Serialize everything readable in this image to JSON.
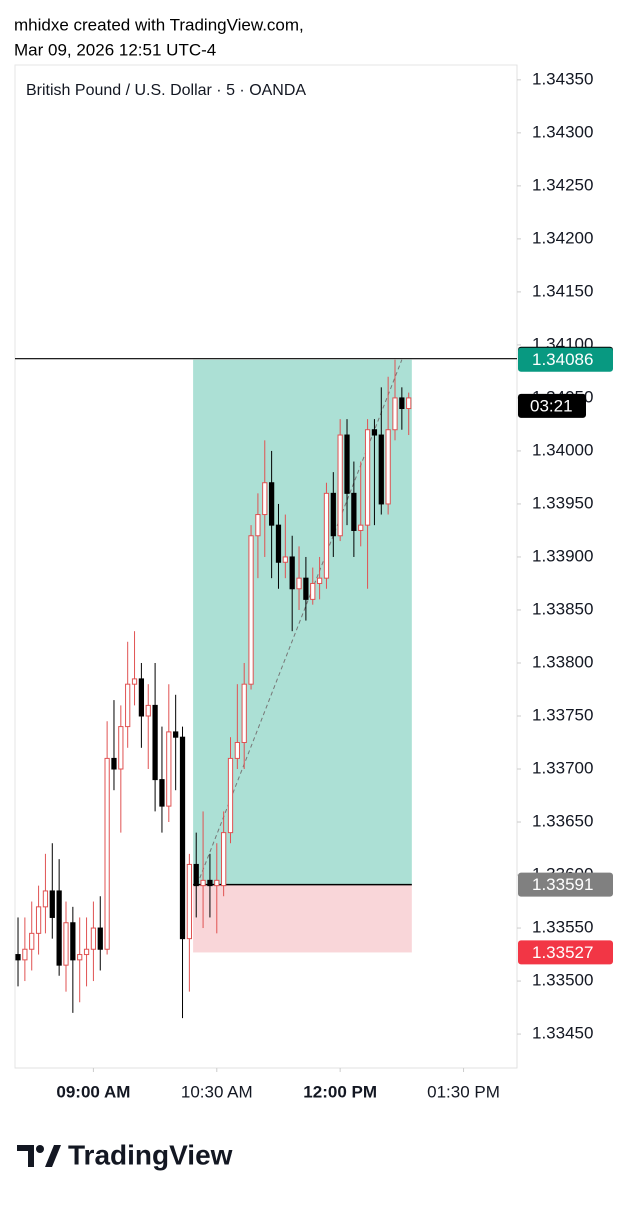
{
  "header": {
    "line1": "mhidxe created with TradingView.com,",
    "line2": "Mar 09, 2026 12:51 UTC-4"
  },
  "chart_data": {
    "type": "candlestick",
    "title": "British Pound / U.S. Dollar · 5 · OANDA",
    "open": [
      1.33525,
      1.3352,
      1.3353,
      1.33545,
      1.3357,
      1.33585,
      1.33585,
      1.33515,
      1.33555,
      1.3352,
      1.33525,
      1.3353,
      1.3355,
      1.3353,
      1.3371,
      1.337,
      1.3374,
      1.3378,
      1.33785,
      1.3375,
      1.3376,
      1.3369,
      1.33665,
      1.33735,
      1.3373,
      1.3354,
      1.3361,
      1.3359,
      1.33595,
      1.3359,
      1.3359,
      1.3364,
      1.3371,
      1.33725,
      1.3378,
      1.3392,
      1.3394,
      1.3397,
      1.3393,
      1.33895,
      1.339,
      1.3387,
      1.3388,
      1.3386,
      1.33875,
      1.3388,
      1.3396,
      1.3392,
      1.34015,
      1.3396,
      1.33925,
      1.3393,
      1.3402,
      1.34015,
      1.3395,
      1.3402,
      1.3405,
      1.3404
    ],
    "high": [
      1.3356,
      1.3356,
      1.33575,
      1.3359,
      1.3362,
      1.3363,
      1.33615,
      1.33575,
      1.3357,
      1.3356,
      1.3356,
      1.33575,
      1.3358,
      1.33745,
      1.33765,
      1.3376,
      1.3382,
      1.3383,
      1.338,
      1.3378,
      1.338,
      1.3374,
      1.3378,
      1.3377,
      1.3374,
      1.3362,
      1.3364,
      1.3366,
      1.3362,
      1.3363,
      1.3366,
      1.3373,
      1.3378,
      1.338,
      1.3393,
      1.3396,
      1.3401,
      1.34,
      1.3395,
      1.3394,
      1.3392,
      1.3391,
      1.339,
      1.3389,
      1.339,
      1.3397,
      1.3398,
      1.3403,
      1.3403,
      1.3399,
      1.3399,
      1.3403,
      1.3403,
      1.3406,
      1.3407,
      1.34086,
      1.3406,
      1.34055
    ],
    "low": [
      1.33495,
      1.335,
      1.3351,
      1.33525,
      1.33545,
      1.3354,
      1.33505,
      1.3349,
      1.3347,
      1.3348,
      1.33495,
      1.335,
      1.3351,
      1.33525,
      1.3368,
      1.3364,
      1.3372,
      1.3376,
      1.3372,
      1.337,
      1.3366,
      1.3364,
      1.3365,
      1.3368,
      1.33465,
      1.3349,
      1.3356,
      1.3355,
      1.3356,
      1.33545,
      1.3358,
      1.3363,
      1.337,
      1.337,
      1.33775,
      1.3388,
      1.339,
      1.3388,
      1.3387,
      1.3388,
      1.3383,
      1.3385,
      1.3384,
      1.33855,
      1.3386,
      1.3387,
      1.339,
      1.33915,
      1.3393,
      1.339,
      1.3391,
      1.3387,
      1.3393,
      1.3394,
      1.3394,
      1.3401,
      1.3402,
      1.34015
    ],
    "close": [
      1.3352,
      1.3353,
      1.33545,
      1.3357,
      1.33585,
      1.3356,
      1.33515,
      1.33555,
      1.3352,
      1.33525,
      1.3353,
      1.3355,
      1.3353,
      1.3371,
      1.337,
      1.3374,
      1.3378,
      1.33785,
      1.3375,
      1.3376,
      1.3369,
      1.33665,
      1.33735,
      1.3373,
      1.3354,
      1.3361,
      1.3359,
      1.33595,
      1.3359,
      1.33595,
      1.3364,
      1.3371,
      1.33725,
      1.3378,
      1.3392,
      1.3394,
      1.3397,
      1.3393,
      1.33895,
      1.339,
      1.3387,
      1.3388,
      1.3386,
      1.33875,
      1.3388,
      1.3396,
      1.3392,
      1.34015,
      1.3396,
      1.33925,
      1.3393,
      1.3402,
      1.34015,
      1.3395,
      1.3402,
      1.3405,
      1.3404,
      1.3405
    ],
    "up_color": "#ffffff",
    "up_border": "#e05252",
    "down_color": "#000000",
    "xlim": [
      -0.44,
      72.8
    ],
    "xticks": [
      {
        "value": 11,
        "label": "09:00 AM"
      },
      {
        "value": 29,
        "label": "10:30 AM"
      },
      {
        "value": 47,
        "label": "12:00 PM"
      },
      {
        "value": 65,
        "label": "01:30 PM"
      }
    ],
    "ylim": [
      1.33418,
      1.34364
    ],
    "yticks": [
      {
        "value": 1.3435,
        "label": "1.34350"
      },
      {
        "value": 1.343,
        "label": "1.34300"
      },
      {
        "value": 1.3425,
        "label": "1.34250"
      },
      {
        "value": 1.342,
        "label": "1.34200"
      },
      {
        "value": 1.3415,
        "label": "1.34150"
      },
      {
        "value": 1.341,
        "label": "1.34100"
      },
      {
        "value": 1.3405,
        "label": "1.34050"
      },
      {
        "value": 1.34,
        "label": "1.34000"
      },
      {
        "value": 1.3395,
        "label": "1.33950"
      },
      {
        "value": 1.339,
        "label": "1.33900"
      },
      {
        "value": 1.3385,
        "label": "1.33850"
      },
      {
        "value": 1.338,
        "label": "1.33800"
      },
      {
        "value": 1.3375,
        "label": "1.33750"
      },
      {
        "value": 1.337,
        "label": "1.33700"
      },
      {
        "value": 1.3365,
        "label": "1.33650"
      },
      {
        "value": 1.336,
        "label": "1.33600"
      },
      {
        "value": 1.3355,
        "label": "1.33550"
      },
      {
        "value": 1.335,
        "label": "1.33500"
      },
      {
        "value": 1.3345,
        "label": "1.33450"
      }
    ],
    "hline": {
      "value": 1.34087,
      "color": "#000000"
    },
    "position": {
      "entry": 1.33591,
      "target": 1.34086,
      "stop": 1.33527,
      "start": 26,
      "end": 57,
      "profit_color": "#a8ded3",
      "loss_color": "#f9d6d9"
    },
    "countdown": "03:21"
  },
  "footer": {
    "brand": "TradingView"
  }
}
